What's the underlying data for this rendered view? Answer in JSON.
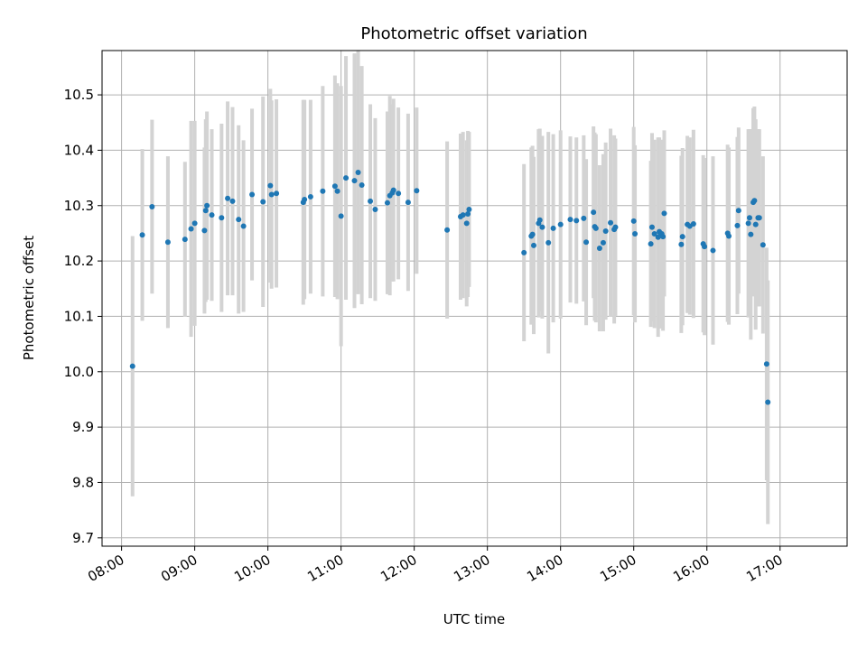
{
  "chart_data": {
    "type": "scatter",
    "title": "Photometric offset variation",
    "xlabel": "UTC time",
    "ylabel": "Photometric offset",
    "x_ticks": [
      "08:00",
      "09:00",
      "10:00",
      "11:00",
      "12:00",
      "13:00",
      "14:00",
      "15:00",
      "16:00",
      "17:00"
    ],
    "y_ticks": [
      "9.7",
      "9.8",
      "9.9",
      "10.0",
      "10.1",
      "10.2",
      "10.3",
      "10.4",
      "10.5"
    ],
    "xlim": [
      "07:44",
      "17:55"
    ],
    "ylim": [
      9.685,
      10.58
    ],
    "grid": true,
    "colors": {
      "marker": "#1f77b4",
      "errorbar": "#d3d3d3",
      "grid": "#b0b0b0"
    },
    "series": [
      {
        "x": [
          "08:09",
          "08:17",
          "08:25",
          "08:38",
          "08:52",
          "08:57",
          "09:00",
          "09:08",
          "09:09",
          "09:10",
          "09:14",
          "09:22",
          "09:27",
          "09:31",
          "09:36",
          "09:40",
          "09:47",
          "09:56",
          "10:02",
          "10:03",
          "10:07",
          "10:29",
          "10:30",
          "10:35",
          "10:45",
          "10:55",
          "10:57",
          "11:00",
          "11:04",
          "11:11",
          "11:14",
          "11:17",
          "11:24",
          "11:28",
          "11:38",
          "11:40",
          "11:42",
          "11:43",
          "11:47",
          "11:55",
          "12:02",
          "12:27",
          "12:38",
          "12:40",
          "12:43",
          "12:44",
          "12:45",
          "13:30",
          "13:36",
          "13:37",
          "13:38",
          "13:42",
          "13:43",
          "13:45",
          "13:50",
          "13:54",
          "14:00",
          "14:08",
          "14:13",
          "14:19",
          "14:21",
          "14:27",
          "14:28",
          "14:29",
          "14:32",
          "14:35",
          "14:37",
          "14:41",
          "14:44",
          "14:45",
          "15:00",
          "15:01",
          "15:14",
          "15:15",
          "15:17",
          "15:20",
          "15:21",
          "15:22",
          "15:23",
          "15:24",
          "15:25",
          "15:39",
          "15:40",
          "15:44",
          "15:46",
          "15:49",
          "15:57",
          "15:58",
          "16:05",
          "16:17",
          "16:18",
          "16:25",
          "16:26",
          "16:34",
          "16:35",
          "16:36",
          "16:38",
          "16:39",
          "16:40",
          "16:42",
          "16:43",
          "16:46",
          "16:49",
          "16:50"
        ],
        "y": [
          10.01,
          10.247,
          10.298,
          10.234,
          10.239,
          10.258,
          10.268,
          10.255,
          10.291,
          10.3,
          10.283,
          10.278,
          10.313,
          10.308,
          10.275,
          10.263,
          10.32,
          10.307,
          10.336,
          10.32,
          10.322,
          10.306,
          10.311,
          10.316,
          10.326,
          10.335,
          10.326,
          10.281,
          10.35,
          10.345,
          10.36,
          10.337,
          10.308,
          10.293,
          10.305,
          10.318,
          10.323,
          10.328,
          10.322,
          10.306,
          10.327,
          10.256,
          10.28,
          10.283,
          10.268,
          10.285,
          10.293,
          10.215,
          10.245,
          10.248,
          10.228,
          10.268,
          10.274,
          10.261,
          10.233,
          10.259,
          10.266,
          10.275,
          10.273,
          10.277,
          10.234,
          10.288,
          10.262,
          10.259,
          10.223,
          10.233,
          10.254,
          10.269,
          10.257,
          10.261,
          10.272,
          10.249,
          10.231,
          10.261,
          10.249,
          10.243,
          10.253,
          10.248,
          10.249,
          10.244,
          10.286,
          10.23,
          10.244,
          10.266,
          10.263,
          10.267,
          10.231,
          10.226,
          10.219,
          10.25,
          10.245,
          10.264,
          10.291,
          10.268,
          10.278,
          10.248,
          10.306,
          10.309,
          10.266,
          10.278,
          10.278,
          10.229,
          10.014,
          9.945
        ],
        "err": [
          0.235,
          0.155,
          0.157,
          0.155,
          0.14,
          0.195,
          0.185,
          0.15,
          0.165,
          0.17,
          0.155,
          0.17,
          0.175,
          0.17,
          0.17,
          0.155,
          0.155,
          0.19,
          0.175,
          0.17,
          0.17,
          0.185,
          0.18,
          0.175,
          0.19,
          0.2,
          0.195,
          0.235,
          0.22,
          0.23,
          0.22,
          0.215,
          0.175,
          0.165,
          0.165,
          0.18,
          0.16,
          0.165,
          0.155,
          0.16,
          0.15,
          0.16,
          0.15,
          0.15,
          0.15,
          0.15,
          0.14,
          0.16,
          0.16,
          0.16,
          0.16,
          0.17,
          0.165,
          0.165,
          0.2,
          0.17,
          0.17,
          0.15,
          0.15,
          0.15,
          0.15,
          0.155,
          0.17,
          0.17,
          0.15,
          0.16,
          0.16,
          0.17,
          0.17,
          0.16,
          0.17,
          0.16,
          0.15,
          0.17,
          0.17,
          0.18,
          0.17,
          0.17,
          0.17,
          0.17,
          0.15,
          0.16,
          0.16,
          0.16,
          0.16,
          0.17,
          0.16,
          0.16,
          0.17,
          0.16,
          0.16,
          0.16,
          0.15,
          0.17,
          0.16,
          0.19,
          0.17,
          0.17,
          0.19,
          0.16,
          0.16,
          0.16,
          0.21,
          0.22
        ]
      }
    ]
  }
}
